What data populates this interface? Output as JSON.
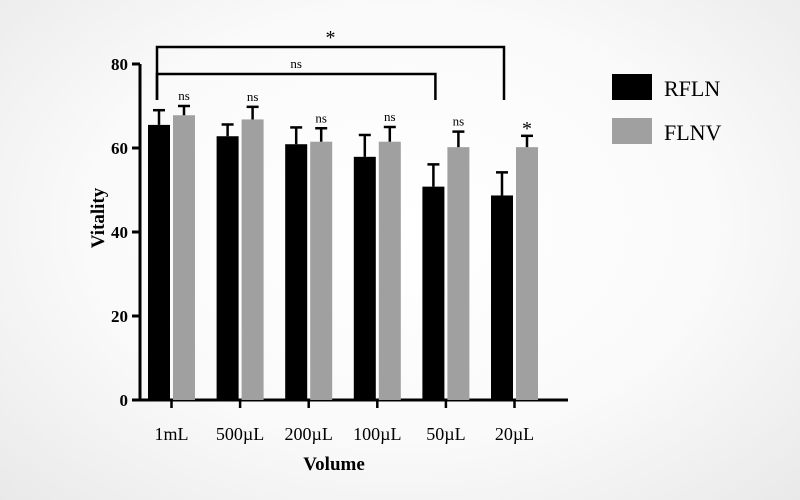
{
  "chart_data": {
    "type": "bar",
    "xlabel": "Volume",
    "ylabel": "Vitality",
    "ylim": [
      0,
      80
    ],
    "yticks": [
      0,
      20,
      40,
      60,
      80
    ],
    "categories": [
      "1mL",
      "500µL",
      "200µL",
      "100µL",
      "50µL",
      "20µL"
    ],
    "series": [
      {
        "name": "RFLN",
        "color": "#000000",
        "values": [
          65.5,
          62.8,
          60.9,
          57.9,
          50.8,
          48.7
        ],
        "errors": [
          3.5,
          2.8,
          4.0,
          5.2,
          5.3,
          5.5
        ]
      },
      {
        "name": "FLNV",
        "color": "#a0a0a0",
        "values": [
          67.8,
          66.8,
          61.5,
          61.5,
          60.2,
          60.2
        ],
        "errors": [
          2.2,
          3.0,
          3.2,
          3.5,
          3.7,
          2.7
        ]
      }
    ],
    "pair_significance": [
      "ns",
      "ns",
      "ns",
      "ns",
      "ns",
      "*"
    ],
    "brackets": [
      {
        "from": "1mL",
        "to": "50µL",
        "label": "ns"
      },
      {
        "from": "1mL",
        "to": "20µL",
        "label": "*"
      }
    ],
    "legend_position": "right"
  }
}
